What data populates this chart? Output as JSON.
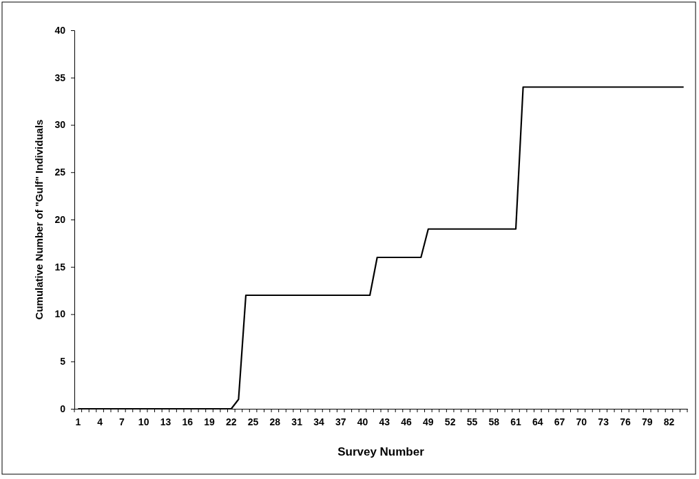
{
  "chart_data": {
    "type": "line",
    "xlabel": "Survey Number",
    "ylabel": "Cumulative Number of \"Gulf\" Individuals",
    "categories": [
      "1",
      null,
      null,
      "4",
      null,
      null,
      "7",
      null,
      null,
      "10",
      null,
      null,
      "13",
      null,
      null,
      "16",
      null,
      null,
      "19",
      null,
      null,
      "22",
      null,
      null,
      "25",
      null,
      null,
      "28",
      null,
      null,
      "31",
      null,
      null,
      "34",
      null,
      null,
      "37",
      null,
      null,
      "40",
      null,
      null,
      "43",
      null,
      null,
      "46",
      null,
      null,
      "49",
      null,
      null,
      "52",
      null,
      null,
      "55",
      null,
      null,
      "58",
      null,
      null,
      "61",
      null,
      null,
      "64",
      null,
      null,
      "67",
      null,
      null,
      "70",
      null,
      null,
      "73",
      null,
      null,
      "76",
      null,
      null,
      "79",
      null,
      null,
      "82",
      null,
      null
    ],
    "series": [
      {
        "color": "#000000",
        "values": [
          0,
          0,
          0,
          0,
          0,
          0,
          0,
          0,
          0,
          0,
          0,
          0,
          0,
          0,
          0,
          0,
          0,
          0,
          0,
          0,
          0,
          0,
          1,
          12,
          12,
          12,
          12,
          12,
          12,
          12,
          12,
          12,
          12,
          12,
          12,
          12,
          12,
          12,
          12,
          12,
          12,
          16,
          16,
          16,
          16,
          16,
          16,
          16,
          19,
          19,
          19,
          19,
          19,
          19,
          19,
          19,
          19,
          19,
          19,
          19,
          19,
          34,
          34,
          34,
          34,
          34,
          34,
          34,
          34,
          34,
          34,
          34,
          34,
          34,
          34,
          34,
          34,
          34,
          34,
          34,
          34,
          34,
          34,
          34
        ]
      }
    ],
    "ylim": [
      0,
      40
    ],
    "yticks": [
      0,
      5,
      10,
      15,
      20,
      25,
      30,
      35,
      40
    ],
    "grid": false,
    "marker": "none",
    "line_style": "solid"
  }
}
